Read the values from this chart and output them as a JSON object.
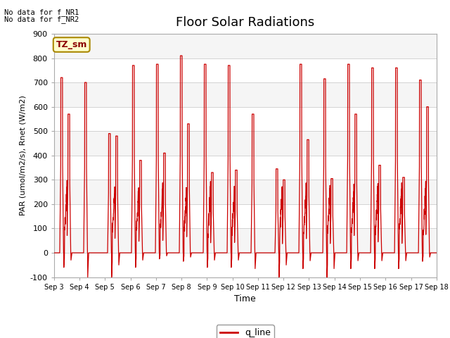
{
  "title": "Floor Solar Radiations",
  "xlabel": "Time",
  "ylabel": "PAR (umol/m2/s), Rnet (W/m2)",
  "ylim": [
    -100,
    900
  ],
  "yticks": [
    -100,
    0,
    100,
    200,
    300,
    400,
    500,
    600,
    700,
    800,
    900
  ],
  "x_labels": [
    "Sep 3",
    "Sep 4",
    "Sep 5",
    "Sep 6",
    "Sep 7",
    "Sep 8",
    "Sep 9",
    "Sep 10",
    "Sep 11",
    "Sep 12",
    "Sep 13",
    "Sep 14",
    "Sep 15",
    "Sep 16",
    "Sep 17",
    "Sep 18"
  ],
  "no_data_text1": "No data for f_NR1",
  "no_data_text2": "No data for f_NR2",
  "tz_label": "TZ_sm",
  "legend_label": "q_line",
  "line_color": "#cc0000",
  "bg_color_light": "#f5f5f5",
  "bg_color_dark": "#e8e8e8",
  "title_fontsize": 13,
  "axis_fontsize": 9,
  "tick_fontsize": 8
}
